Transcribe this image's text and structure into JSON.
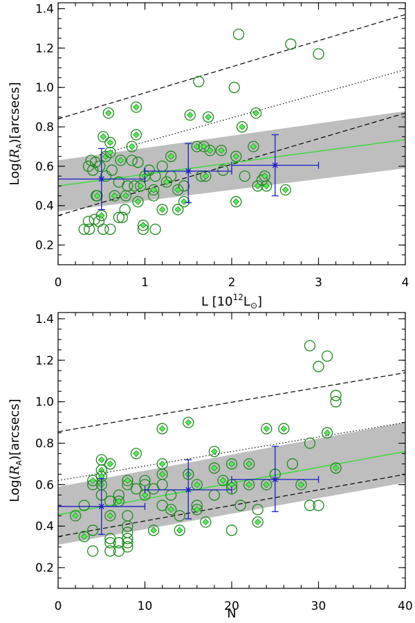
{
  "chart_data": [
    {
      "type": "scatter",
      "panel": "top",
      "xlabel_text": "L  [10",
      "xlabel_sup": "12",
      "xlabel_sub": "⊙",
      "xlabel_end": "]",
      "ylabel_prefix": "Log(",
      "ylabel_var": "R",
      "ylabel_sub": "A",
      "ylabel_suffix": ")[arcsecs]",
      "xlim": [
        0,
        4
      ],
      "ylim": [
        0.1,
        1.43
      ],
      "xticks": [
        0,
        1,
        2,
        3,
        4
      ],
      "xtick_labels": [
        "0",
        "1",
        "2",
        "3",
        "4"
      ],
      "yticks": [
        0.2,
        0.4,
        0.6,
        0.8,
        1.0,
        1.2,
        1.4
      ],
      "ytick_labels": [
        "0.2",
        "0.4",
        "0.6",
        "0.8",
        "1.0",
        "1.2",
        "1.4"
      ],
      "colors": {
        "points": "#1a8a1a",
        "diamond": "#55ee55",
        "fit": "#33dd33",
        "bins": "#1a1acc",
        "band": "#bebebe",
        "lines": "#000000"
      },
      "band": {
        "x": [
          0,
          4
        ],
        "lower": [
          0.37,
          0.59
        ],
        "upper": [
          0.63,
          0.88
        ]
      },
      "fit_line": {
        "x": [
          0,
          4
        ],
        "y": [
          0.5,
          0.735
        ]
      },
      "dashed_upper": {
        "x": [
          0,
          4
        ],
        "y": [
          0.84,
          1.37
        ]
      },
      "dashed_lower": {
        "x": [
          0,
          4
        ],
        "y": [
          0.35,
          0.87
        ]
      },
      "dotted": {
        "x": [
          0.48,
          4
        ],
        "y": [
          0.66,
          1.09
        ]
      },
      "binned_means": [
        {
          "x": 0.5,
          "y": 0.535,
          "xerr": 0.5,
          "yerr_low": 0.155,
          "yerr_high": 0.155
        },
        {
          "x": 1.5,
          "y": 0.575,
          "xerr": 0.5,
          "yerr_low": 0.16,
          "yerr_high": 0.14
        },
        {
          "x": 2.5,
          "y": 0.605,
          "xerr": 0.5,
          "yerr_low": 0.155,
          "yerr_high": 0.155
        }
      ],
      "points_circle": [
        [
          0.3,
          0.28
        ],
        [
          0.36,
          0.28
        ],
        [
          0.35,
          0.32
        ],
        [
          0.42,
          0.33
        ],
        [
          0.47,
          0.32
        ],
        [
          0.52,
          0.28
        ],
        [
          0.6,
          0.28
        ],
        [
          0.7,
          0.34
        ],
        [
          0.74,
          0.34
        ],
        [
          0.77,
          0.38
        ],
        [
          0.98,
          0.28
        ],
        [
          1.12,
          0.28
        ],
        [
          0.35,
          0.6
        ],
        [
          0.38,
          0.63
        ],
        [
          0.43,
          0.62
        ],
        [
          0.48,
          0.6
        ],
        [
          0.4,
          0.58
        ],
        [
          0.55,
          0.55
        ],
        [
          0.62,
          0.58
        ],
        [
          0.7,
          0.52
        ],
        [
          0.8,
          0.5
        ],
        [
          0.85,
          0.63
        ],
        [
          0.92,
          0.62
        ],
        [
          1.05,
          0.58
        ],
        [
          1.12,
          0.55
        ],
        [
          1.2,
          0.6
        ],
        [
          1.3,
          0.55
        ],
        [
          1.45,
          0.5
        ],
        [
          1.65,
          0.55
        ],
        [
          1.9,
          0.58
        ],
        [
          2.15,
          0.55
        ],
        [
          2.35,
          0.53
        ],
        [
          1.62,
          1.03
        ],
        [
          2.08,
          1.27
        ],
        [
          2.68,
          1.22
        ],
        [
          3.0,
          1.17
        ],
        [
          2.03,
          1.0
        ],
        [
          0.44,
          0.45
        ],
        [
          0.88,
          0.5
        ],
        [
          1.1,
          0.45
        ]
      ],
      "points_diamond": [
        [
          0.52,
          0.75
        ],
        [
          0.58,
          0.87
        ],
        [
          0.6,
          0.72
        ],
        [
          0.55,
          0.65
        ],
        [
          0.6,
          0.67
        ],
        [
          0.72,
          0.63
        ],
        [
          0.85,
          0.7
        ],
        [
          0.9,
          0.76
        ],
        [
          0.9,
          0.9
        ],
        [
          1.0,
          0.55
        ],
        [
          0.95,
          0.5
        ],
        [
          0.92,
          0.42
        ],
        [
          0.98,
          0.3
        ],
        [
          1.2,
          0.38
        ],
        [
          1.3,
          0.65
        ],
        [
          1.38,
          0.38
        ],
        [
          1.45,
          0.42
        ],
        [
          1.52,
          0.86
        ],
        [
          1.6,
          0.7
        ],
        [
          1.68,
          0.7
        ],
        [
          1.75,
          0.68
        ],
        [
          1.73,
          0.85
        ],
        [
          1.88,
          0.68
        ],
        [
          2.05,
          0.65
        ],
        [
          2.12,
          0.8
        ],
        [
          2.25,
          0.7
        ],
        [
          2.28,
          0.87
        ],
        [
          2.3,
          0.5
        ],
        [
          2.38,
          0.55
        ],
        [
          2.62,
          0.48
        ],
        [
          2.05,
          0.42
        ],
        [
          0.45,
          0.45
        ],
        [
          0.5,
          0.35
        ],
        [
          0.78,
          0.45
        ],
        [
          1.1,
          0.48
        ],
        [
          1.25,
          0.52
        ],
        [
          1.38,
          0.48
        ],
        [
          1.7,
          0.55
        ],
        [
          2.4,
          0.5
        ],
        [
          0.65,
          0.45
        ]
      ]
    },
    {
      "type": "scatter",
      "panel": "bottom",
      "xlabel_text": "N",
      "ylabel_prefix": "Log(",
      "ylabel_var": "R",
      "ylabel_sub": "A",
      "ylabel_suffix": ")[arcsecs]",
      "xlim": [
        0,
        40
      ],
      "ylim": [
        0.1,
        1.43
      ],
      "xticks": [
        0,
        10,
        20,
        30,
        40
      ],
      "xtick_labels": [
        "0",
        "10",
        "20",
        "30",
        "40"
      ],
      "yticks": [
        0.2,
        0.4,
        0.6,
        0.8,
        1.0,
        1.2,
        1.4
      ],
      "ytick_labels": [
        "0.2",
        "0.4",
        "0.6",
        "0.8",
        "1.0",
        "1.2",
        "1.4"
      ],
      "colors": {
        "points": "#1a8a1a",
        "diamond": "#55ee55",
        "fit": "#33dd33",
        "bins": "#1a1acc",
        "band": "#bebebe",
        "lines": "#000000"
      },
      "band": {
        "x": [
          0,
          40
        ],
        "lower": [
          0.31,
          0.61
        ],
        "upper": [
          0.59,
          0.9
        ]
      },
      "fit_line": {
        "x": [
          0,
          40
        ],
        "y": [
          0.455,
          0.76
        ]
      },
      "dashed_upper": {
        "x": [
          0,
          40
        ],
        "y": [
          0.855,
          1.14
        ]
      },
      "dashed_lower": {
        "x": [
          0,
          40
        ],
        "y": [
          0.35,
          0.65
        ]
      },
      "dotted": {
        "x": [
          0,
          40
        ],
        "y": [
          0.62,
          0.9
        ]
      },
      "binned_means": [
        {
          "x": 5,
          "y": 0.495,
          "xerr": 5,
          "yerr_low": 0.135,
          "yerr_high": 0.135
        },
        {
          "x": 15,
          "y": 0.575,
          "xerr": 5,
          "yerr_low": 0.14,
          "yerr_high": 0.145
        },
        {
          "x": 25,
          "y": 0.625,
          "xerr": 5,
          "yerr_low": 0.155,
          "yerr_high": 0.16
        }
      ],
      "points_circle": [
        [
          4,
          0.28
        ],
        [
          6,
          0.28
        ],
        [
          7,
          0.28
        ],
        [
          6,
          0.32
        ],
        [
          6,
          0.34
        ],
        [
          7,
          0.32
        ],
        [
          8,
          0.32
        ],
        [
          8,
          0.34
        ],
        [
          8,
          0.3
        ],
        [
          8,
          0.37
        ],
        [
          8,
          0.4
        ],
        [
          8,
          0.45
        ],
        [
          4,
          0.38
        ],
        [
          3,
          0.5
        ],
        [
          4,
          0.6
        ],
        [
          6,
          0.52
        ],
        [
          7,
          0.55
        ],
        [
          8,
          0.6
        ],
        [
          9,
          0.58
        ],
        [
          10,
          0.6
        ],
        [
          10,
          0.62
        ],
        [
          11,
          0.58
        ],
        [
          12,
          0.6
        ],
        [
          12,
          0.5
        ],
        [
          14,
          0.45
        ],
        [
          16,
          0.5
        ],
        [
          18,
          0.55
        ],
        [
          20,
          0.58
        ],
        [
          21,
          0.5
        ],
        [
          23,
          0.48
        ],
        [
          25,
          0.65
        ],
        [
          27,
          0.7
        ],
        [
          29,
          0.8
        ],
        [
          29,
          1.27
        ],
        [
          30,
          1.17
        ],
        [
          31,
          1.22
        ],
        [
          32,
          1.03
        ],
        [
          32,
          1.0
        ],
        [
          29,
          0.5
        ],
        [
          30,
          0.5
        ],
        [
          5,
          0.55
        ],
        [
          13,
          0.55
        ],
        [
          20,
          0.38
        ]
      ],
      "points_diamond": [
        [
          2,
          0.45
        ],
        [
          3,
          0.35
        ],
        [
          4,
          0.62
        ],
        [
          5,
          0.72
        ],
        [
          5,
          0.67
        ],
        [
          5,
          0.64
        ],
        [
          5,
          0.6
        ],
        [
          6,
          0.45
        ],
        [
          7,
          0.52
        ],
        [
          8,
          0.62
        ],
        [
          9,
          0.75
        ],
        [
          10,
          0.55
        ],
        [
          11,
          0.38
        ],
        [
          12,
          0.7
        ],
        [
          12,
          0.87
        ],
        [
          13,
          0.48
        ],
        [
          14,
          0.38
        ],
        [
          15,
          0.9
        ],
        [
          15,
          0.65
        ],
        [
          16,
          0.6
        ],
        [
          16,
          0.48
        ],
        [
          17,
          0.42
        ],
        [
          18,
          0.76
        ],
        [
          18,
          0.68
        ],
        [
          19,
          0.62
        ],
        [
          20,
          0.7
        ],
        [
          20,
          0.6
        ],
        [
          22,
          0.7
        ],
        [
          23,
          0.42
        ],
        [
          24,
          0.87
        ],
        [
          24,
          0.6
        ],
        [
          26,
          0.87
        ],
        [
          28,
          0.6
        ],
        [
          31,
          0.85
        ],
        [
          32,
          0.68
        ],
        [
          6,
          0.7
        ],
        [
          12,
          0.65
        ],
        [
          22,
          0.6
        ]
      ]
    }
  ]
}
